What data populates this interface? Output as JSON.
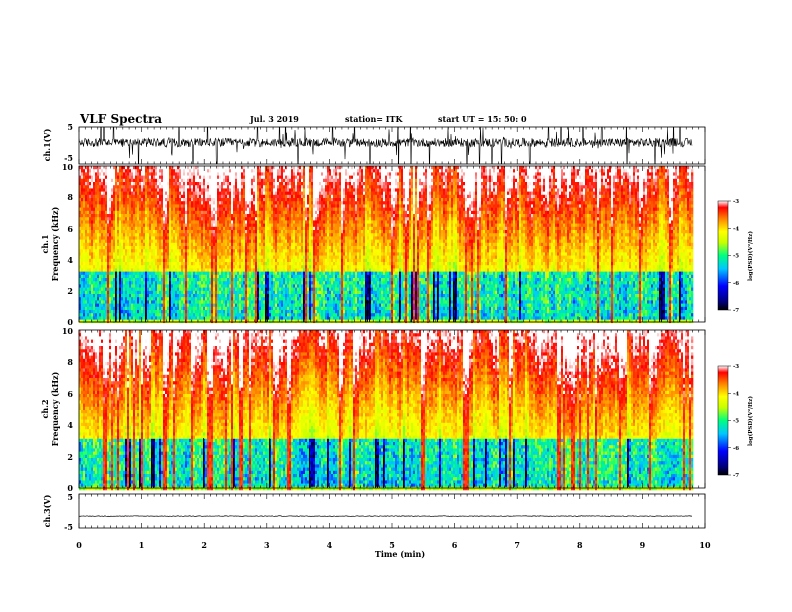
{
  "header": {
    "title": "VLF Spectra",
    "date": "Jul. 3    2019",
    "station": "station= ITK",
    "start": "start  UT  =    15: 50: 0"
  },
  "chart_data": [
    {
      "type": "line",
      "ylabel": "ch.1(V)",
      "yticks": [
        "5",
        "-5"
      ],
      "ylim": [
        -5,
        5
      ],
      "baseline": 0.8,
      "noise_amplitude": 1.2,
      "spike_times_min": [
        0.35,
        0.4,
        0.55,
        0.95,
        1.6,
        1.82,
        2.05,
        2.2,
        2.85,
        3.2,
        3.3,
        3.5,
        4.05,
        4.4,
        4.65,
        5.1,
        5.3,
        5.6,
        6.2,
        6.4,
        6.6,
        6.75,
        7.2,
        7.5,
        7.7,
        8.05,
        8.35,
        8.75,
        9.2,
        9.5,
        9.6
      ]
    },
    {
      "type": "heatmap",
      "ylabel": "Frequency  (kHz)",
      "channel_label": "ch.1",
      "ylim": [
        0,
        10
      ],
      "yticks": [
        "0",
        "2",
        "4",
        "6",
        "8",
        "10"
      ],
      "colorbar": {
        "label": "log(PSD)(V²/Hz)",
        "ticks": [
          "-3",
          "-4",
          "-5",
          "-6",
          "-7"
        ],
        "range": [
          -7,
          -3
        ]
      }
    },
    {
      "type": "heatmap",
      "ylabel": "Frequency  (kHz)",
      "channel_label": "ch.2",
      "ylim": [
        0,
        10
      ],
      "yticks": [
        "0",
        "2",
        "4",
        "6",
        "8",
        "10"
      ],
      "colorbar": {
        "label": "log(PSD)(V²/Hz)",
        "ticks": [
          "-3",
          "-4",
          "-5",
          "-6",
          "-7"
        ],
        "range": [
          -7,
          -3
        ]
      }
    },
    {
      "type": "line",
      "ylabel": "ch.3(V)",
      "yticks": [
        "5",
        "-5"
      ],
      "ylim": [
        -5,
        5
      ],
      "baseline": -1.5,
      "noise_amplitude": 0.1,
      "spike_times_min": []
    }
  ],
  "xaxis": {
    "label": "Time  (min)",
    "ticks": [
      "0",
      "1",
      "2",
      "3",
      "4",
      "5",
      "6",
      "7",
      "8",
      "9",
      "10"
    ],
    "xlim": [
      0,
      10
    ],
    "data_end_min": 9.8
  }
}
